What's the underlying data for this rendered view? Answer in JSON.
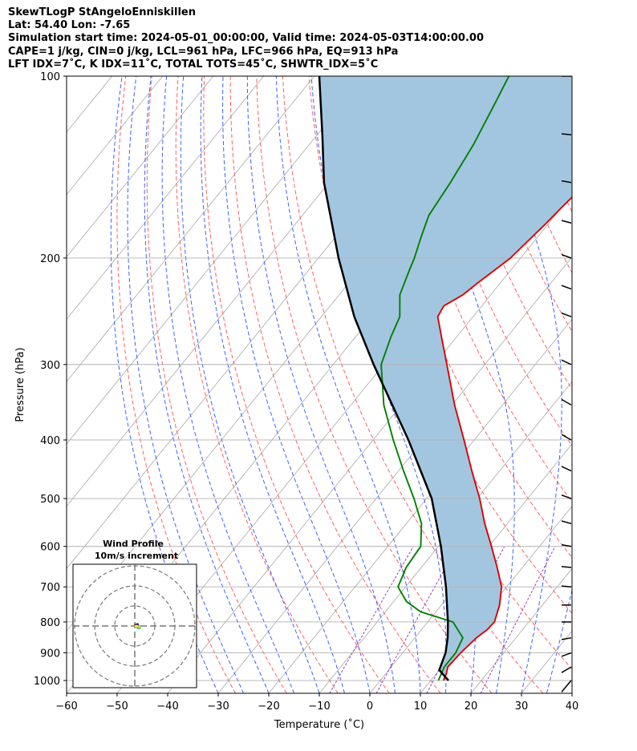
{
  "header": {
    "line1": "SkewTLogP StAngeloEnniskillen",
    "line2": "Lat: 54.40   Lon: -7.65",
    "line3": "Simulation start time: 2024-05-01_00:00:00, Valid time: 2024-05-03T14:00:00.00",
    "line4": "CAPE=1 j/kg, CIN=0 j/kg, LCL=961 hPa, LFC=966 hPa, EQ=913 hPa",
    "line5": "LFT IDX=7˚C, K IDX=11˚C, TOTAL TOTS=45˚C, SHWTR_IDX=5˚C"
  },
  "colors": {
    "temperature": "#e00000",
    "dewpoint": "#008000",
    "parcel": "#000000",
    "cape_fill": "#a3c6e0",
    "dry_adiabat": "#ff6060",
    "moist_adiabat": "#4060ff",
    "mixing_ratio": "#9940c0",
    "isotherm": "#a8a8a8"
  },
  "chart_data": {
    "type": "line",
    "xlabel": "Temperature (˚C)",
    "ylabel": "Pressure (hPa)",
    "xlim": [
      -60,
      40
    ],
    "ylim": [
      1050,
      100
    ],
    "y_scale": "log",
    "x_ticks": [
      "−60",
      "−50",
      "−40",
      "−30",
      "−20",
      "−10",
      "0",
      "10",
      "20",
      "30",
      "40"
    ],
    "y_ticks": [
      "100",
      "200",
      "300",
      "400",
      "500",
      "600",
      "700",
      "800",
      "900",
      "1000"
    ],
    "grid": true,
    "series": [
      {
        "key": "temperature",
        "points": [
          [
            1000,
            12.5
          ],
          [
            975,
            12.0
          ],
          [
            950,
            11.2
          ],
          [
            900,
            11.5
          ],
          [
            850,
            12.2
          ],
          [
            825,
            13.0
          ],
          [
            800,
            13.2
          ],
          [
            750,
            11.5
          ],
          [
            700,
            9.0
          ],
          [
            650,
            5.0
          ],
          [
            600,
            0.5
          ],
          [
            550,
            -4.5
          ],
          [
            500,
            -9.5
          ],
          [
            450,
            -15.5
          ],
          [
            400,
            -22.0
          ],
          [
            350,
            -29.5
          ],
          [
            300,
            -37.5
          ],
          [
            270,
            -43.0
          ],
          [
            250,
            -47.0
          ],
          [
            240,
            -47.5
          ],
          [
            230,
            -45.5
          ],
          [
            220,
            -44.5
          ],
          [
            200,
            -42.0
          ],
          [
            175,
            -40.5
          ],
          [
            165,
            -40.0
          ],
          [
            150,
            -39.0
          ],
          [
            135,
            -39.5
          ],
          [
            125,
            -40.0
          ],
          [
            115,
            -40.5
          ],
          [
            110,
            -40.5
          ],
          [
            100,
            -41.0
          ]
        ]
      },
      {
        "key": "dewpoint",
        "points": [
          [
            1000,
            11.5
          ],
          [
            975,
            11.0
          ],
          [
            950,
            10.5
          ],
          [
            900,
            10.5
          ],
          [
            850,
            9.5
          ],
          [
            800,
            5.0
          ],
          [
            770,
            -3.0
          ],
          [
            740,
            -7.5
          ],
          [
            700,
            -11.5
          ],
          [
            650,
            -13.0
          ],
          [
            600,
            -13.5
          ],
          [
            550,
            -17.0
          ],
          [
            500,
            -22.5
          ],
          [
            450,
            -29.0
          ],
          [
            400,
            -36.0
          ],
          [
            350,
            -43.5
          ],
          [
            300,
            -50.5
          ],
          [
            270,
            -53.0
          ],
          [
            250,
            -54.5
          ],
          [
            230,
            -58.0
          ],
          [
            210,
            -60.0
          ],
          [
            200,
            -61.0
          ],
          [
            185,
            -63.0
          ],
          [
            170,
            -65.0
          ],
          [
            150,
            -66.0
          ],
          [
            130,
            -67.5
          ],
          [
            110,
            -70.0
          ],
          [
            100,
            -71.5
          ]
        ]
      },
      {
        "key": "parcel",
        "points": [
          [
            1000,
            13.5
          ],
          [
            961,
            10.0
          ],
          [
            900,
            8.5
          ],
          [
            850,
            6.5
          ],
          [
            800,
            4.0
          ],
          [
            700,
            -2.0
          ],
          [
            600,
            -9.5
          ],
          [
            500,
            -19.0
          ],
          [
            400,
            -33.0
          ],
          [
            300,
            -52.0
          ],
          [
            250,
            -63.5
          ],
          [
            200,
            -76.0
          ],
          [
            150,
            -91.0
          ],
          [
            125,
            -99.0
          ],
          [
            100,
            -109.0
          ]
        ]
      }
    ],
    "wind_barbs": {
      "pressures_hpa": [
        1000,
        950,
        900,
        850,
        800,
        750,
        700,
        650,
        600,
        550,
        500,
        450,
        400,
        350,
        300,
        250,
        225,
        200,
        175,
        150,
        125,
        100
      ],
      "speed_kt": [
        5,
        15,
        15,
        15,
        15,
        15,
        15,
        15,
        20,
        20,
        15,
        15,
        15,
        20,
        20,
        25,
        25,
        25,
        20,
        15,
        10,
        5
      ],
      "direction_deg": [
        220,
        240,
        250,
        260,
        270,
        270,
        275,
        275,
        280,
        285,
        290,
        295,
        300,
        300,
        295,
        290,
        290,
        290,
        285,
        280,
        275,
        270
      ]
    },
    "inset": {
      "title_line1": "Wind Profile",
      "title_line2": "10m/s increment"
    }
  }
}
